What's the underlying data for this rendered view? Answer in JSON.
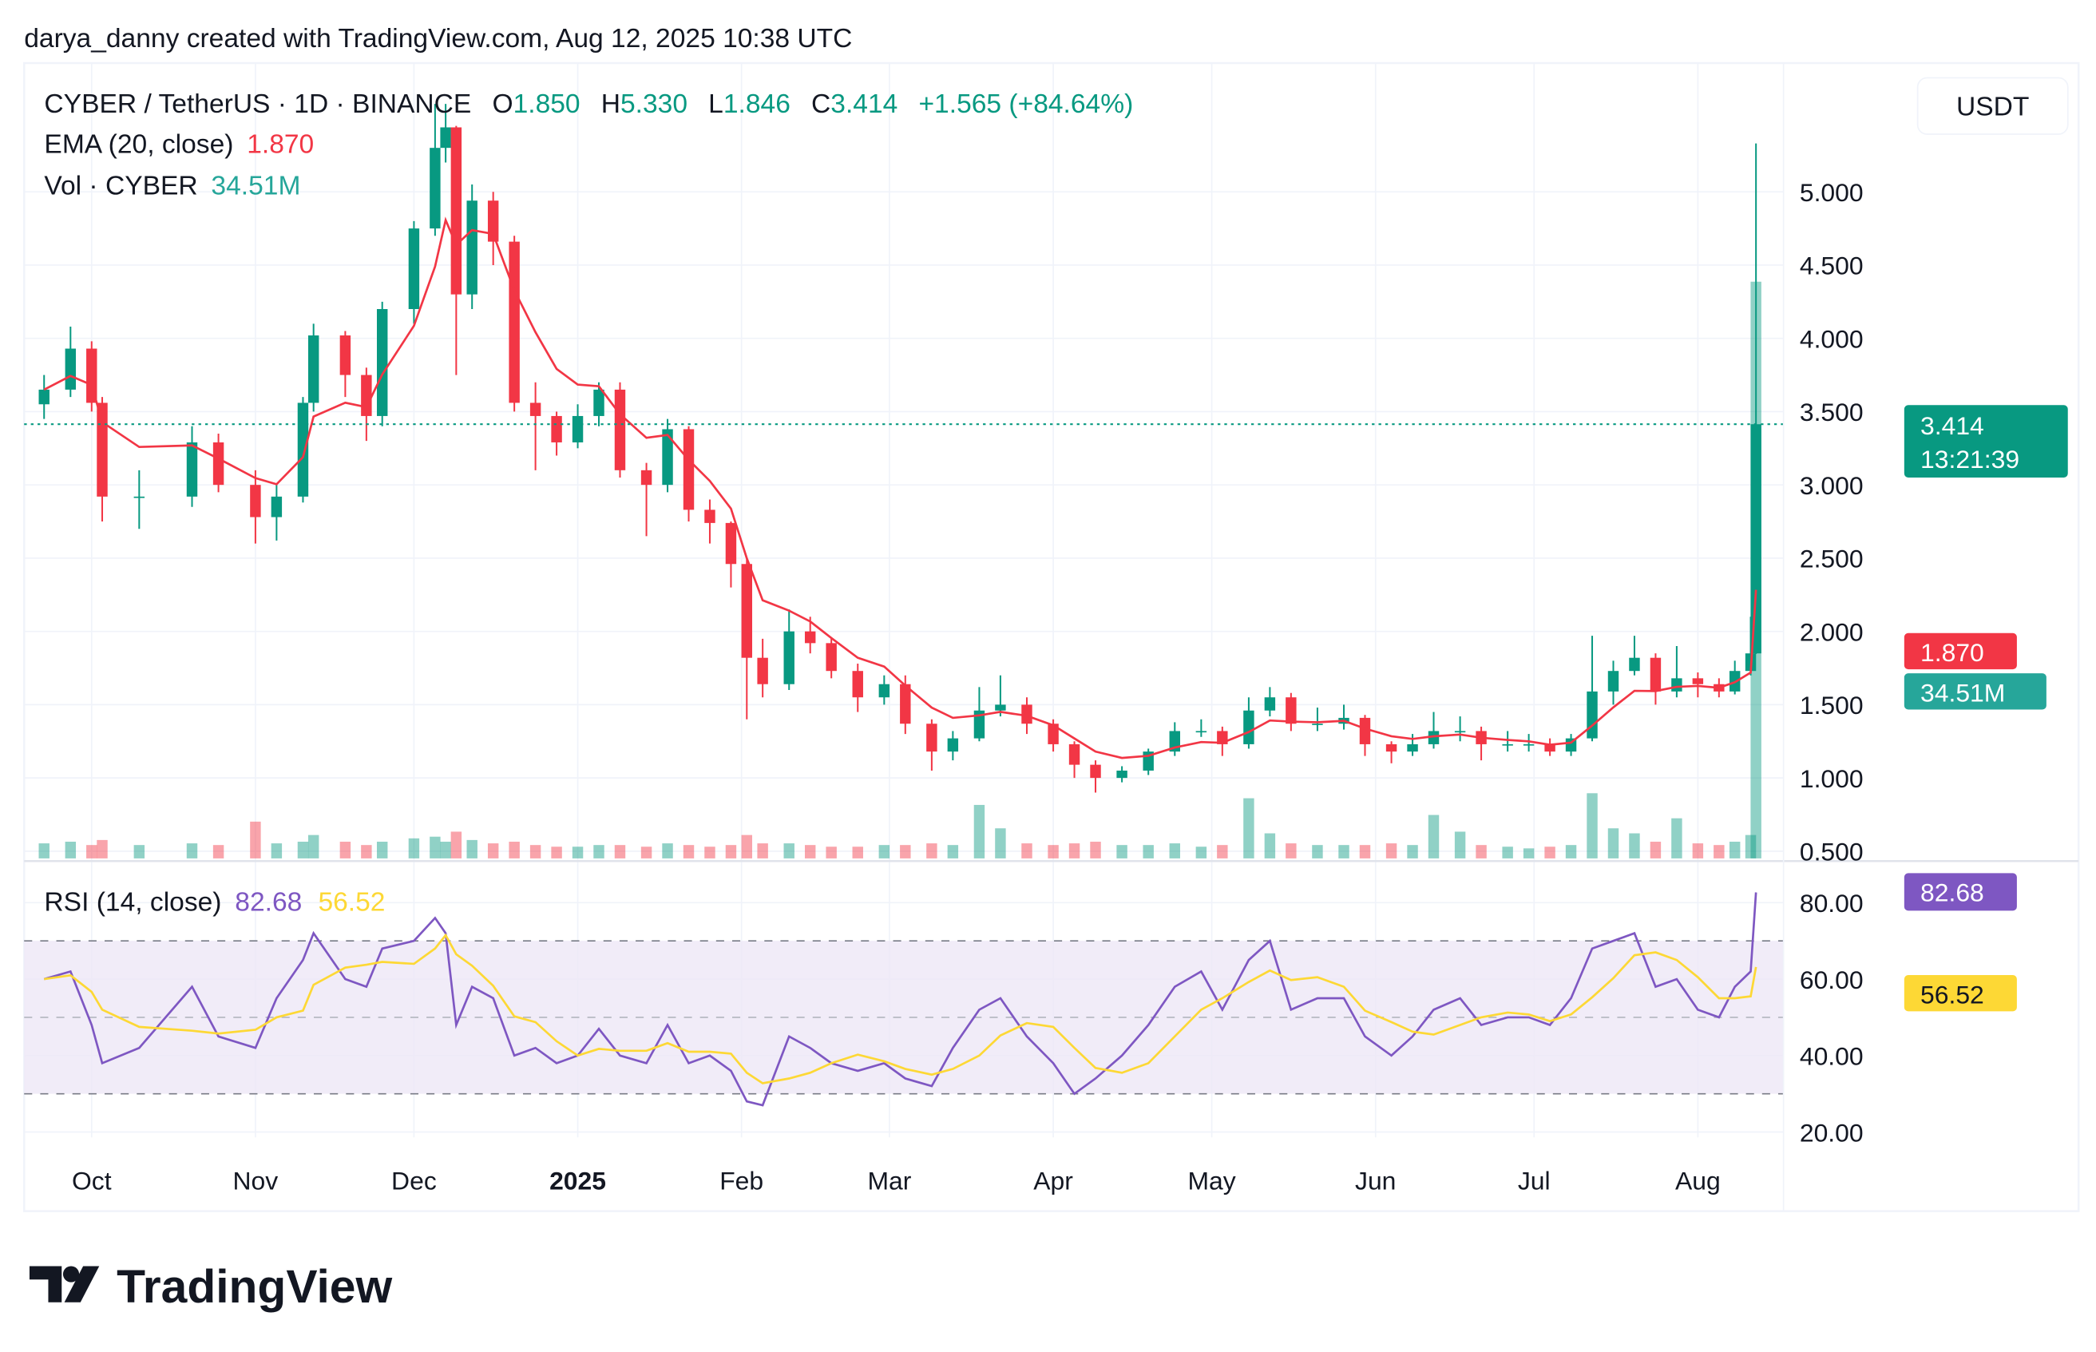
{
  "header": {
    "attribution": "darya_danny created with TradingView.com, Aug 12, 2025 10:38 UTC"
  },
  "legend": {
    "symbol": "CYBER / TetherUS · 1D · BINANCE",
    "o_label": "O",
    "o_value": "1.850",
    "h_label": "H",
    "h_value": "5.330",
    "l_label": "L",
    "l_value": "1.846",
    "c_label": "C",
    "c_value": "3.414",
    "change": "+1.565 (+84.64%)",
    "ema_label": "EMA (20, close)",
    "ema_value": "1.870",
    "vol_label": "Vol · CYBER",
    "vol_value": "34.51M",
    "rsi_label": "RSI (14, close)",
    "rsi_value": "82.68",
    "rsi_ma_value": "56.52"
  },
  "currency_button": "USDT",
  "price_labels": {
    "last_price": "3.414",
    "countdown": "13:21:39",
    "ema": "1.870",
    "volume": "34.51M",
    "rsi": "82.68",
    "rsi_ma": "56.52"
  },
  "brand": {
    "logo_text": "TradingView"
  },
  "colors": {
    "up": "#089981",
    "down": "#f23645",
    "ema": "#f23645",
    "volume_label": "#26a69a",
    "rsi": "#7e57c2",
    "rsi_ma": "#fdd835",
    "rsi_band": "#ede7f6"
  },
  "chart_data": {
    "type": "candlestick",
    "price_axis": {
      "ticks": [
        0.5,
        1.0,
        1.5,
        2.0,
        2.5,
        3.0,
        3.5,
        4.0,
        4.5,
        5.0
      ],
      "tick_labels": [
        "0.500",
        "1.000",
        "1.500",
        "2.000",
        "2.500",
        "3.000",
        "3.500",
        "4.000",
        "4.500",
        "5.000"
      ],
      "range": [
        0.45,
        5.9
      ]
    },
    "rsi_axis": {
      "ticks": [
        20,
        40,
        60,
        80
      ],
      "tick_labels": [
        "20.00",
        "40.00",
        "60.00",
        "80.00"
      ],
      "band": [
        30,
        70
      ],
      "midline": 50,
      "range": [
        15,
        88
      ]
    },
    "time_axis": [
      {
        "date": "2024-10-01",
        "label": "Oct"
      },
      {
        "date": "2024-11-01",
        "label": "Nov"
      },
      {
        "date": "2024-12-01",
        "label": "Dec"
      },
      {
        "date": "2025-01-01",
        "label": "2025",
        "bold": true
      },
      {
        "date": "2025-02-01",
        "label": "Feb"
      },
      {
        "date": "2025-03-01",
        "label": "Mar"
      },
      {
        "date": "2025-04-01",
        "label": "Apr"
      },
      {
        "date": "2025-05-01",
        "label": "May"
      },
      {
        "date": "2025-06-01",
        "label": "Jun"
      },
      {
        "date": "2025-07-01",
        "label": "Jul"
      },
      {
        "date": "2025-08-01",
        "label": "Aug"
      }
    ],
    "grid": true,
    "candles": [
      [
        "2024-09-22",
        3.55,
        3.75,
        3.45,
        3.65
      ],
      [
        "2024-09-27",
        3.65,
        4.08,
        3.6,
        3.93
      ],
      [
        "2024-10-01",
        3.93,
        3.98,
        3.5,
        3.56
      ],
      [
        "2024-10-03",
        3.56,
        3.6,
        2.75,
        2.92
      ],
      [
        "2024-10-10",
        2.92,
        3.1,
        2.7,
        2.92
      ],
      [
        "2024-10-20",
        2.92,
        3.4,
        2.85,
        3.29
      ],
      [
        "2024-10-25",
        3.29,
        3.35,
        2.95,
        3.0
      ],
      [
        "2024-11-01",
        3.0,
        3.1,
        2.6,
        2.78
      ],
      [
        "2024-11-05",
        2.78,
        3.0,
        2.62,
        2.92
      ],
      [
        "2024-11-10",
        2.92,
        3.6,
        2.88,
        3.56
      ],
      [
        "2024-11-12",
        3.56,
        4.1,
        3.5,
        4.02
      ],
      [
        "2024-11-18",
        4.02,
        4.05,
        3.6,
        3.75
      ],
      [
        "2024-11-22",
        3.75,
        3.8,
        3.3,
        3.47
      ],
      [
        "2024-11-25",
        3.47,
        4.25,
        3.4,
        4.2
      ],
      [
        "2024-12-01",
        4.2,
        4.8,
        4.1,
        4.75
      ],
      [
        "2024-12-05",
        4.75,
        5.6,
        4.7,
        5.3
      ],
      [
        "2024-12-07",
        5.3,
        5.6,
        5.2,
        5.44
      ],
      [
        "2024-12-09",
        5.44,
        5.45,
        3.75,
        4.3
      ],
      [
        "2024-12-12",
        4.3,
        5.05,
        4.2,
        4.94
      ],
      [
        "2024-12-16",
        4.94,
        5.0,
        4.5,
        4.66
      ],
      [
        "2024-12-20",
        4.66,
        4.7,
        3.5,
        3.56
      ],
      [
        "2024-12-24",
        3.56,
        3.7,
        3.1,
        3.47
      ],
      [
        "2024-12-28",
        3.47,
        3.5,
        3.2,
        3.29
      ],
      [
        "2025-01-01",
        3.29,
        3.55,
        3.25,
        3.47
      ],
      [
        "2025-01-05",
        3.47,
        3.7,
        3.4,
        3.65
      ],
      [
        "2025-01-09",
        3.65,
        3.7,
        3.05,
        3.1
      ],
      [
        "2025-01-14",
        3.1,
        3.15,
        2.65,
        3.0
      ],
      [
        "2025-01-18",
        3.0,
        3.45,
        2.95,
        3.38
      ],
      [
        "2025-01-22",
        3.38,
        3.4,
        2.75,
        2.83
      ],
      [
        "2025-01-26",
        2.83,
        2.9,
        2.6,
        2.74
      ],
      [
        "2025-01-30",
        2.74,
        2.75,
        2.3,
        2.46
      ],
      [
        "2025-02-02",
        2.46,
        2.5,
        1.4,
        1.82
      ],
      [
        "2025-02-05",
        1.82,
        1.95,
        1.55,
        1.64
      ],
      [
        "2025-02-10",
        1.64,
        2.15,
        1.6,
        2.0
      ],
      [
        "2025-02-14",
        2.0,
        2.1,
        1.85,
        1.92
      ],
      [
        "2025-02-18",
        1.92,
        1.95,
        1.68,
        1.73
      ],
      [
        "2025-02-23",
        1.73,
        1.78,
        1.45,
        1.55
      ],
      [
        "2025-02-28",
        1.55,
        1.7,
        1.5,
        1.64
      ],
      [
        "2025-03-04",
        1.64,
        1.7,
        1.3,
        1.37
      ],
      [
        "2025-03-09",
        1.37,
        1.4,
        1.05,
        1.18
      ],
      [
        "2025-03-13",
        1.18,
        1.32,
        1.12,
        1.27
      ],
      [
        "2025-03-18",
        1.27,
        1.62,
        1.25,
        1.46
      ],
      [
        "2025-03-22",
        1.46,
        1.7,
        1.42,
        1.5
      ],
      [
        "2025-03-27",
        1.5,
        1.55,
        1.3,
        1.37
      ],
      [
        "2025-04-01",
        1.37,
        1.4,
        1.18,
        1.23
      ],
      [
        "2025-04-05",
        1.23,
        1.25,
        1.0,
        1.09
      ],
      [
        "2025-04-09",
        1.09,
        1.12,
        0.9,
        1.0
      ],
      [
        "2025-04-14",
        1.0,
        1.08,
        0.97,
        1.05
      ],
      [
        "2025-04-19",
        1.05,
        1.2,
        1.02,
        1.18
      ],
      [
        "2025-04-24",
        1.18,
        1.38,
        1.15,
        1.32
      ],
      [
        "2025-04-29",
        1.32,
        1.4,
        1.28,
        1.32
      ],
      [
        "2025-05-03",
        1.32,
        1.35,
        1.15,
        1.23
      ],
      [
        "2025-05-08",
        1.23,
        1.55,
        1.2,
        1.46
      ],
      [
        "2025-05-12",
        1.46,
        1.62,
        1.42,
        1.55
      ],
      [
        "2025-05-16",
        1.55,
        1.58,
        1.32,
        1.37
      ],
      [
        "2025-05-21",
        1.37,
        1.48,
        1.32,
        1.37
      ],
      [
        "2025-05-26",
        1.37,
        1.5,
        1.33,
        1.41
      ],
      [
        "2025-05-30",
        1.41,
        1.43,
        1.15,
        1.23
      ],
      [
        "2025-06-04",
        1.23,
        1.25,
        1.1,
        1.18
      ],
      [
        "2025-06-08",
        1.18,
        1.3,
        1.15,
        1.23
      ],
      [
        "2025-06-12",
        1.23,
        1.45,
        1.2,
        1.32
      ],
      [
        "2025-06-17",
        1.32,
        1.42,
        1.25,
        1.32
      ],
      [
        "2025-06-21",
        1.32,
        1.35,
        1.12,
        1.23
      ],
      [
        "2025-06-26",
        1.23,
        1.32,
        1.18,
        1.23
      ],
      [
        "2025-06-30",
        1.23,
        1.3,
        1.18,
        1.23
      ],
      [
        "2025-07-04",
        1.23,
        1.27,
        1.15,
        1.18
      ],
      [
        "2025-07-08",
        1.18,
        1.3,
        1.15,
        1.27
      ],
      [
        "2025-07-12",
        1.27,
        1.97,
        1.25,
        1.59
      ],
      [
        "2025-07-16",
        1.59,
        1.8,
        1.5,
        1.73
      ],
      [
        "2025-07-20",
        1.73,
        1.97,
        1.7,
        1.82
      ],
      [
        "2025-07-24",
        1.82,
        1.85,
        1.5,
        1.59
      ],
      [
        "2025-07-28",
        1.59,
        1.9,
        1.55,
        1.68
      ],
      [
        "2025-08-01",
        1.68,
        1.72,
        1.55,
        1.64
      ],
      [
        "2025-08-05",
        1.64,
        1.68,
        1.55,
        1.59
      ],
      [
        "2025-08-08",
        1.59,
        1.8,
        1.57,
        1.73
      ],
      [
        "2025-08-11",
        1.73,
        2.1,
        1.7,
        1.85
      ],
      [
        "2025-08-12",
        1.85,
        5.33,
        1.846,
        3.414
      ]
    ],
    "volume_millions": [
      0.9,
      1.0,
      0.8,
      1.1,
      0.8,
      0.9,
      0.8,
      2.2,
      0.9,
      1.0,
      1.4,
      1.0,
      0.8,
      1.0,
      1.2,
      1.3,
      1.0,
      1.6,
      1.1,
      0.9,
      1.0,
      0.8,
      0.7,
      0.7,
      0.8,
      0.8,
      0.7,
      0.9,
      0.8,
      0.7,
      0.8,
      1.4,
      0.9,
      0.9,
      0.8,
      0.7,
      0.7,
      0.8,
      0.8,
      0.9,
      0.8,
      3.2,
      1.8,
      0.9,
      0.8,
      0.9,
      1.0,
      0.8,
      0.8,
      0.9,
      0.7,
      0.8,
      3.6,
      1.5,
      0.9,
      0.8,
      0.8,
      0.8,
      0.9,
      0.8,
      2.6,
      1.6,
      0.8,
      0.7,
      0.6,
      0.7,
      0.8,
      3.9,
      1.8,
      1.5,
      1.0,
      2.4,
      0.9,
      0.8,
      1.0,
      1.4,
      34.51
    ],
    "rsi": [
      60,
      62,
      48,
      38,
      42,
      58,
      45,
      42,
      55,
      65,
      72,
      60,
      58,
      68,
      70,
      76,
      72,
      48,
      58,
      55,
      40,
      42,
      38,
      40,
      47,
      40,
      38,
      48,
      38,
      40,
      36,
      28,
      27,
      45,
      42,
      38,
      36,
      38,
      34,
      32,
      42,
      52,
      55,
      45,
      38,
      30,
      34,
      40,
      48,
      58,
      62,
      52,
      65,
      70,
      52,
      55,
      55,
      45,
      40,
      45,
      52,
      55,
      48,
      50,
      50,
      48,
      55,
      68,
      70,
      72,
      58,
      60,
      52,
      50,
      58,
      62,
      82.68
    ]
  }
}
